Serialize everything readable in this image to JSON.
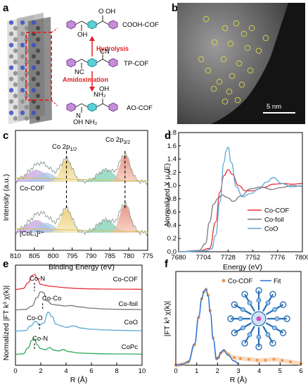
{
  "panels": {
    "a": {
      "label": "a",
      "names": {
        "cooh": "COOH-COF",
        "tp": "TP-COF",
        "ao": "AO-COF"
      },
      "arrows": {
        "hydrolysis": "Hydrolysis",
        "amidoximation": "Amidoximation"
      },
      "groups": {
        "cooh_top": "O  OH",
        "cooh_bot": "OH",
        "cn": "CN",
        "nc": "NC",
        "ao_oh": "OH",
        "ao_nh2": "NH₂",
        "ao_n": "N",
        "ao_bot": "OH  NH₂"
      }
    },
    "b": {
      "label": "b",
      "scalebar": "5 nm"
    },
    "c": {
      "label": "c",
      "xlabel": "Binding Energy (eV)",
      "ylabel": "Intensity (a.u.)",
      "xticks": [
        "810",
        "805",
        "800",
        "795",
        "790",
        "785",
        "780",
        "775"
      ],
      "peaks": {
        "p12": "Co 2p",
        "p12sub": "1/2",
        "p32": "Co 2p",
        "p32sub": "3/2"
      },
      "traces": [
        "Co-COF",
        "[CoL₃]²⁺"
      ]
    },
    "d": {
      "label": "d",
      "xlabel": "Energy (eV)",
      "ylabel": "Normalized X μ (E)",
      "xticks": [
        "7680",
        "7704",
        "7728",
        "7752",
        "7776",
        "7800"
      ],
      "yticks": [
        "0.0",
        "0.2",
        "0.4",
        "0.6",
        "0.8",
        "1.0",
        "1.2",
        "1.4",
        "1.6",
        "1.8"
      ]
    },
    "e": {
      "label": "e",
      "xlabel": "R (Å)",
      "ylabel": "Normalized |FT k³ χ(k)|",
      "xticks": [
        "0",
        "2",
        "4",
        "6",
        "8",
        "10"
      ],
      "annotations": [
        "Co-N",
        "Co-Co",
        "Co-O",
        "Co-N"
      ]
    },
    "f": {
      "label": "f",
      "xlabel": "R (Å)",
      "ylabel": "|FT k³ χ(k)|",
      "xticks": [
        "0",
        "1",
        "2",
        "3",
        "4",
        "5",
        "6"
      ]
    }
  },
  "chart_data": [
    {
      "panel": "c",
      "type": "line",
      "title": "",
      "xlabel": "Binding Energy (eV)",
      "ylabel": "Intensity (a.u.)",
      "xlim": [
        810,
        775
      ],
      "series": [
        {
          "name": "Co-COF",
          "peaks_eV": [
            796.5,
            781.0
          ]
        },
        {
          "name": "[CoL₃]²⁺",
          "peaks_eV": [
            796.5,
            781.0
          ]
        }
      ]
    },
    {
      "panel": "d",
      "type": "line",
      "title": "",
      "xlabel": "Energy (eV)",
      "ylabel": "Normalized X μ (E)",
      "xlim": [
        7680,
        7800
      ],
      "ylim": [
        0.0,
        1.8
      ],
      "legend": "bottom-right",
      "series": [
        {
          "name": "Co-COF",
          "color": "#e8303a",
          "x": [
            7680,
            7700,
            7710,
            7716,
            7720,
            7724,
            7728,
            7732,
            7738,
            7745,
            7752,
            7762,
            7772,
            7782,
            7790,
            7800
          ],
          "y": [
            0.0,
            0.01,
            0.05,
            0.45,
            0.9,
            1.15,
            1.24,
            1.17,
            1.0,
            0.92,
            0.92,
            0.97,
            1.02,
            1.03,
            1.02,
            1.03
          ]
        },
        {
          "name": "Co-foil",
          "color": "#7a7a7a",
          "x": [
            7680,
            7700,
            7706,
            7710,
            7714,
            7718,
            7722,
            7727,
            7733,
            7740,
            7750,
            7760,
            7770,
            7780,
            7790,
            7800
          ],
          "y": [
            0.0,
            0.02,
            0.12,
            0.45,
            0.72,
            0.8,
            0.86,
            0.82,
            0.76,
            0.84,
            0.95,
            0.98,
            0.94,
            0.97,
            1.0,
            0.99
          ]
        },
        {
          "name": "CoO",
          "color": "#5aa8d6",
          "x": [
            7680,
            7705,
            7712,
            7716,
            7720,
            7724,
            7726,
            7728,
            7731,
            7736,
            7742,
            7750,
            7758,
            7765,
            7772,
            7780,
            7790,
            7800
          ],
          "y": [
            0.0,
            0.01,
            0.04,
            0.25,
            0.75,
            1.35,
            1.52,
            1.58,
            1.35,
            0.98,
            0.83,
            0.88,
            0.95,
            1.05,
            1.12,
            1.03,
            0.98,
            1.0
          ]
        }
      ]
    },
    {
      "panel": "e",
      "type": "line",
      "title": "",
      "xlabel": "R (Å)",
      "ylabel": "Normalized |FT k³ χ(k)|",
      "xlim": [
        0,
        10
      ],
      "series": [
        {
          "name": "Co-COF",
          "color": "#e8303a",
          "offset": 3.0,
          "x": [
            0,
            0.6,
            1.0,
            1.3,
            1.5,
            1.7,
            2.0,
            2.4,
            2.8,
            3.2,
            3.6,
            4.2,
            5,
            6,
            7,
            8,
            9,
            10
          ],
          "y": [
            0.02,
            0.08,
            0.45,
            0.9,
            1.0,
            0.75,
            0.35,
            0.28,
            0.22,
            0.2,
            0.16,
            0.12,
            0.08,
            0.06,
            0.05,
            0.04,
            0.04,
            0.03
          ]
        },
        {
          "name": "Co-foil",
          "color": "#777777",
          "offset": 2.0,
          "x": [
            0,
            0.8,
            1.3,
            1.7,
            2.0,
            2.2,
            2.5,
            2.9,
            3.4,
            3.9,
            4.4,
            5,
            6,
            7,
            8,
            9,
            10
          ],
          "y": [
            0.02,
            0.05,
            0.25,
            0.75,
            1.1,
            1.05,
            0.55,
            0.35,
            0.3,
            0.25,
            0.28,
            0.2,
            0.12,
            0.08,
            0.06,
            0.05,
            0.04
          ]
        },
        {
          "name": "CoO",
          "color": "#5aa8d6",
          "offset": 1.0,
          "x": [
            0,
            0.8,
            1.2,
            1.6,
            1.9,
            2.2,
            2.6,
            2.9,
            3.2,
            3.6,
            4.0,
            4.6,
            5.2,
            6,
            7,
            8,
            9,
            10
          ],
          "y": [
            0.02,
            0.05,
            0.3,
            0.55,
            0.35,
            0.45,
            1.05,
            0.8,
            0.4,
            0.3,
            0.22,
            0.3,
            0.18,
            0.12,
            0.08,
            0.06,
            0.05,
            0.04
          ]
        },
        {
          "name": "CoPc",
          "color": "#2eaa5a",
          "offset": 0.0,
          "x": [
            0,
            0.6,
            1.0,
            1.3,
            1.5,
            1.7,
            2.0,
            2.4,
            2.7,
            3.0,
            3.4,
            3.8,
            4.2,
            5,
            6,
            7,
            8,
            9,
            10
          ],
          "y": [
            0.02,
            0.05,
            0.4,
            0.85,
            0.95,
            0.6,
            0.35,
            0.3,
            0.42,
            0.28,
            0.22,
            0.3,
            0.18,
            0.1,
            0.07,
            0.05,
            0.04,
            0.04,
            0.03
          ]
        }
      ]
    },
    {
      "panel": "f",
      "type": "line",
      "title": "",
      "xlabel": "R (Å)",
      "ylabel": "|FT k³ χ(k)|",
      "xlim": [
        0,
        6
      ],
      "ylim": [
        0,
        5
      ],
      "legend": "top",
      "series": [
        {
          "name": "Co-COF",
          "color": "#f0964a",
          "style": "points",
          "x": [
            0.0,
            0.3,
            0.6,
            0.9,
            1.1,
            1.25,
            1.35,
            1.45,
            1.55,
            1.65,
            1.8,
            1.95,
            2.05,
            2.15,
            2.3,
            2.5,
            2.8,
            3.1,
            3.5,
            3.9,
            4.3,
            4.7,
            5.1,
            5.5,
            6.0
          ],
          "y": [
            0.0,
            0.05,
            0.2,
            1.2,
            2.8,
            3.9,
            4.3,
            4.45,
            4.1,
            3.2,
            1.6,
            0.4,
            0.45,
            0.7,
            0.85,
            0.65,
            0.45,
            0.4,
            0.35,
            0.3,
            0.3,
            0.35,
            0.28,
            0.2,
            0.1
          ]
        },
        {
          "name": "Fit",
          "color": "#2d6fd1",
          "style": "line",
          "x": [
            0.0,
            0.3,
            0.6,
            0.9,
            1.1,
            1.25,
            1.35,
            1.45,
            1.55,
            1.65,
            1.8,
            1.95,
            2.05,
            2.15,
            2.3,
            2.5,
            2.8,
            3.0
          ],
          "y": [
            0.0,
            0.05,
            0.2,
            1.25,
            2.85,
            3.95,
            4.35,
            4.45,
            4.05,
            3.1,
            1.5,
            0.35,
            0.45,
            0.75,
            0.9,
            0.6,
            0.25,
            0.1
          ]
        }
      ]
    }
  ]
}
